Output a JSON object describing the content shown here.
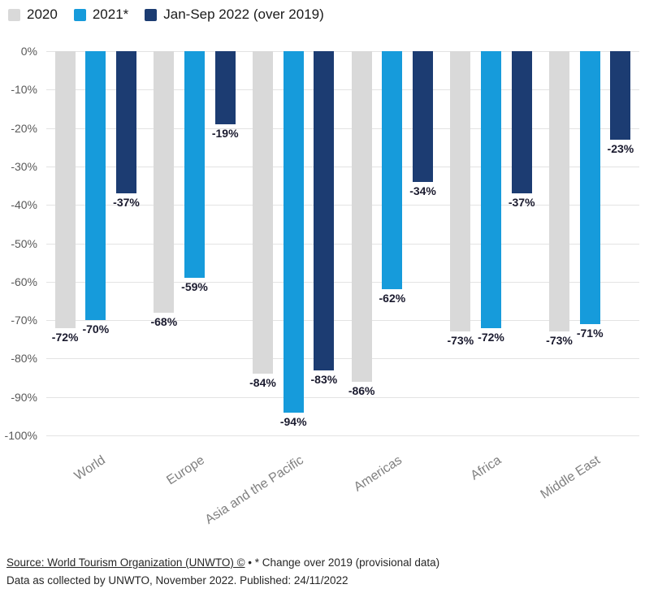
{
  "legend": {
    "items": [
      {
        "label": "2020",
        "color": "#d9d9d9"
      },
      {
        "label": "2021*",
        "color": "#169bdb"
      },
      {
        "label": "Jan-Sep 2022 (over 2019)",
        "color": "#1c3c72"
      }
    ]
  },
  "chart_data": {
    "type": "bar",
    "title": "",
    "categories": [
      "World",
      "Europe",
      "Asia and the Pacific",
      "Americas",
      "Africa",
      "Middle East"
    ],
    "series": [
      {
        "name": "2020",
        "color": "#d9d9d9",
        "values": [
          -72,
          -68,
          -84,
          -86,
          -73,
          -73
        ]
      },
      {
        "name": "2021*",
        "color": "#169bdb",
        "values": [
          -70,
          -59,
          -94,
          -62,
          -72,
          -71
        ]
      },
      {
        "name": "Jan-Sep 2022 (over 2019)",
        "color": "#1c3c72",
        "values": [
          -37,
          -19,
          -83,
          -34,
          -37,
          -23
        ]
      }
    ],
    "ylim": [
      -100,
      0
    ],
    "ytick_step": 10,
    "ytick_labels": [
      "0%",
      "-10%",
      "-20%",
      "-30%",
      "-40%",
      "-50%",
      "-60%",
      "-70%",
      "-80%",
      "-90%",
      "-100%"
    ],
    "grid": true,
    "legend_position": "top-left",
    "value_label_suffix": "%"
  },
  "footer": {
    "source_link": "Source: World Tourism Organization (UNWTO) ©",
    "note": "• * Change over 2019 (provisional data)",
    "line2": "Data as collected by UNWTO, November 2022. Published: 24/11/2022"
  }
}
